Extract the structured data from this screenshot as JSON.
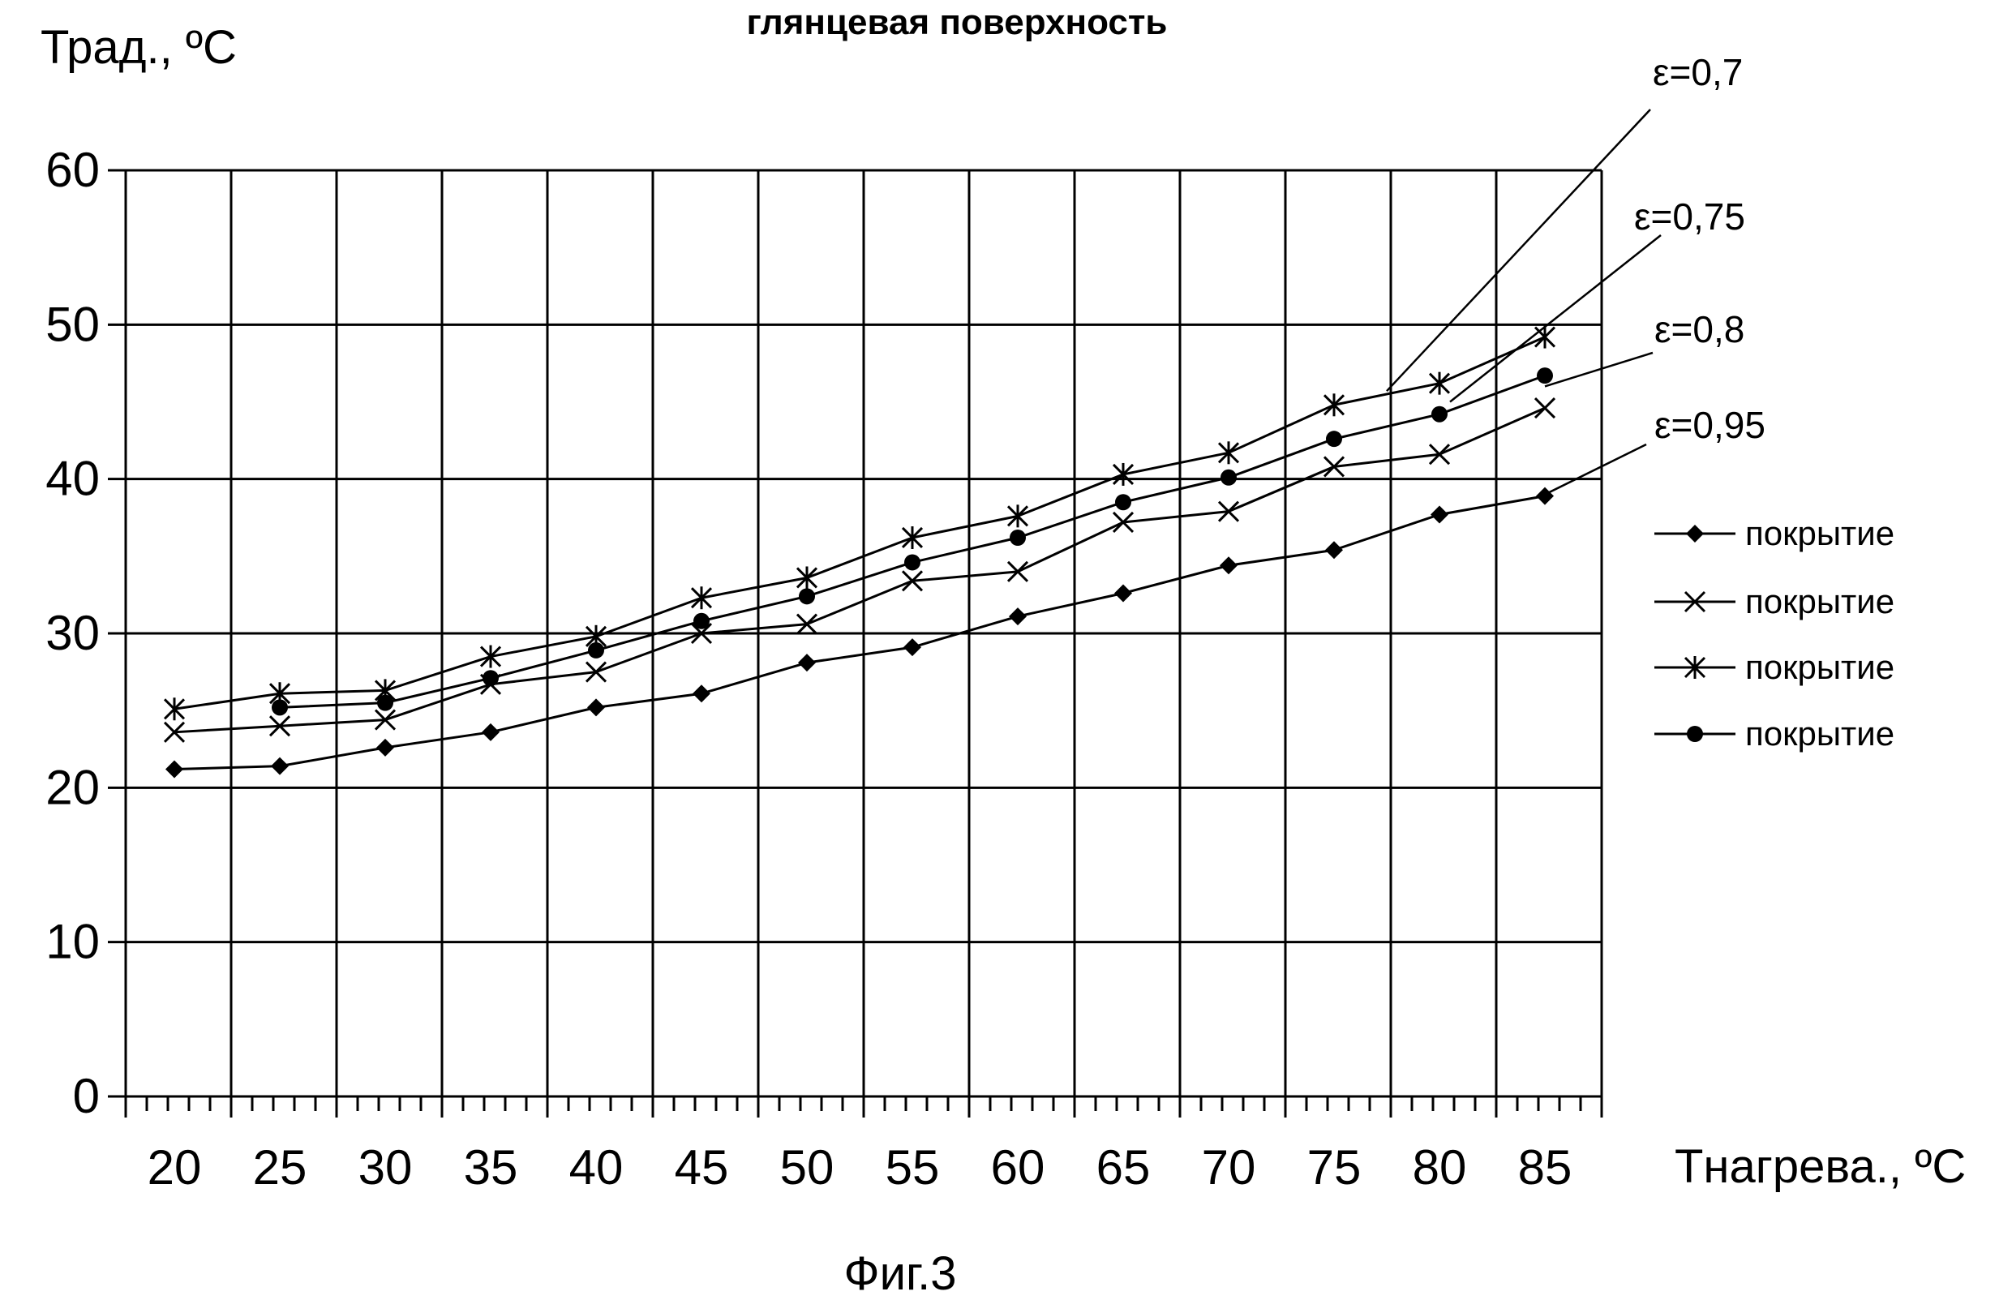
{
  "chart_data": {
    "type": "line",
    "title": "глянцевая поверхность",
    "ylabel": "Трад., ºC",
    "xlabel": "Тнагрева., ºC",
    "caption": "Фиг.3",
    "x": [
      20,
      25,
      30,
      35,
      40,
      45,
      50,
      55,
      60,
      65,
      70,
      75,
      80,
      85
    ],
    "xtick_labels": [
      "20",
      "25",
      "30",
      "35",
      "40",
      "45",
      "50",
      "55",
      "60",
      "65",
      "70",
      "75",
      "80",
      "85"
    ],
    "ylim": [
      0,
      60
    ],
    "yticks": [
      0,
      10,
      20,
      30,
      40,
      50,
      60
    ],
    "ytick_labels": [
      "0",
      "10",
      "20",
      "30",
      "40",
      "50",
      "60"
    ],
    "grid": true,
    "legend_position": "right",
    "series": [
      {
        "name": "покрытие",
        "marker": "diamond",
        "values": [
          21.2,
          21.4,
          22.6,
          23.6,
          25.2,
          26.1,
          28.1,
          29.1,
          31.1,
          32.6,
          34.4,
          35.4,
          37.7,
          38.9
        ]
      },
      {
        "name": "покрытие",
        "marker": "x",
        "values": [
          23.6,
          24.0,
          24.4,
          26.7,
          27.5,
          30.0,
          30.6,
          33.4,
          34.0,
          37.2,
          37.9,
          40.8,
          41.6,
          44.6
        ]
      },
      {
        "name": "покрытие",
        "marker": "asterisk",
        "values": [
          25.1,
          26.1,
          26.3,
          28.5,
          29.8,
          32.3,
          33.6,
          36.2,
          37.6,
          40.3,
          41.7,
          44.8,
          46.2,
          49.2
        ]
      },
      {
        "name": "покрытие",
        "marker": "circle",
        "values": [
          null,
          25.2,
          25.5,
          27.1,
          28.9,
          30.8,
          32.4,
          34.6,
          36.2,
          38.5,
          40.1,
          42.6,
          44.2,
          46.7
        ]
      }
    ],
    "annotations": [
      {
        "text": "ε=0,7",
        "target_x": 77.5,
        "target_y": 45.7
      },
      {
        "text": "ε=0,75",
        "target_x": 80.5,
        "target_y": 45.0
      },
      {
        "text": "ε=0,8",
        "target_x": 85,
        "target_y": 46.0
      },
      {
        "text": "ε=0,95",
        "target_x": 85,
        "target_y": 39.0
      }
    ],
    "colors": {
      "line": "#000000",
      "grid": "#000000",
      "background": "#ffffff"
    }
  }
}
